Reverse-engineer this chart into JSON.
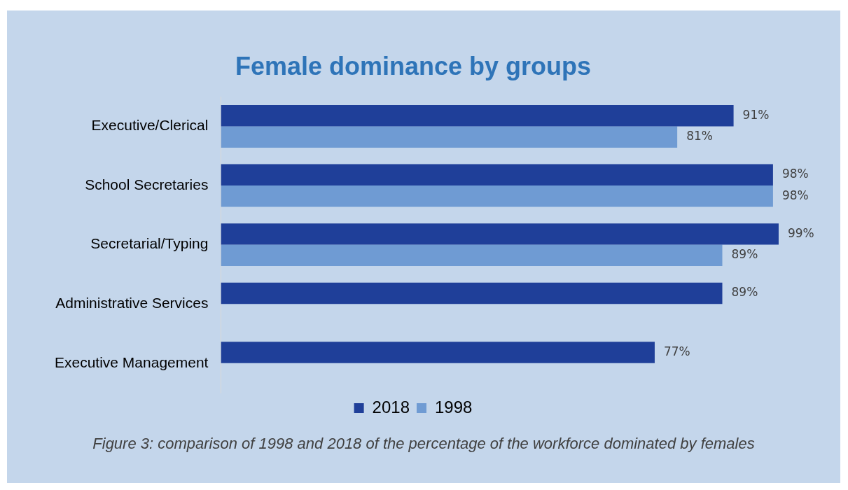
{
  "chart_data": {
    "type": "bar",
    "orientation": "horizontal",
    "title": "Female dominance by groups",
    "categories": [
      "Executive/Clerical",
      "School Secretaries",
      "Secretarial/Typing",
      "Administrative Services",
      "Executive Management"
    ],
    "series": [
      {
        "name": "2018",
        "color": "#1f3f99",
        "values": [
          91,
          98,
          99,
          89,
          77
        ],
        "value_labels": [
          "91%",
          "98%",
          "99%",
          "89%",
          "77%"
        ]
      },
      {
        "name": "1998",
        "color": "#6f9bd3",
        "values": [
          81,
          98,
          89,
          null,
          null
        ],
        "value_labels": [
          "81%",
          "98%",
          "89%",
          null,
          null
        ]
      }
    ],
    "tick_labels": "y",
    "grid": false,
    "legend": "bottom",
    "annotations": [
      "Figure 3: comparison of 1998 and 2018 of the percentage of the workforce dominated by females"
    ]
  }
}
